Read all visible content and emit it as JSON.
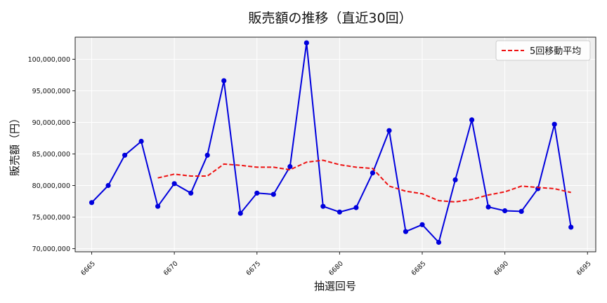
{
  "chart_data": {
    "type": "line",
    "title": "販売額の推移（直近30回）",
    "xlabel": "抽選回号",
    "ylabel": "販売額（円）",
    "xlim": [
      6664,
      6695.5
    ],
    "ylim": [
      69500000,
      103500000
    ],
    "xticks": [
      6665,
      6670,
      6675,
      6680,
      6685,
      6690,
      6695
    ],
    "yticks": [
      70000000,
      75000000,
      80000000,
      85000000,
      90000000,
      95000000,
      100000000
    ],
    "grid": true,
    "legend_position": "top-right",
    "colors": {
      "sales": "#0000dd",
      "moving_average": "#ee1111",
      "plot_bg": "#efefef",
      "grid": "#ffffff"
    },
    "series": [
      {
        "key": "sales",
        "style": "solid-markers",
        "x": [
          6665,
          6666,
          6667,
          6668,
          6669,
          6670,
          6671,
          6672,
          6673,
          6674,
          6675,
          6676,
          6677,
          6678,
          6679,
          6680,
          6681,
          6682,
          6683,
          6684,
          6685,
          6686,
          6687,
          6688,
          6689,
          6690,
          6691,
          6692,
          6693,
          6694
        ],
        "values": [
          77300000,
          80000000,
          84800000,
          87000000,
          76700000,
          80300000,
          78800000,
          84800000,
          96600000,
          75600000,
          78800000,
          78600000,
          83000000,
          102600000,
          76700000,
          75800000,
          76500000,
          82000000,
          88700000,
          72700000,
          73800000,
          71000000,
          80900000,
          90400000,
          76600000,
          76000000,
          75900000,
          79500000,
          89700000,
          73400000
        ]
      },
      {
        "key": "moving_average",
        "name": "5回移動平均",
        "style": "dashed",
        "x": [
          6669,
          6670,
          6671,
          6672,
          6673,
          6674,
          6675,
          6676,
          6677,
          6678,
          6679,
          6680,
          6681,
          6682,
          6683,
          6684,
          6685,
          6686,
          6687,
          6688,
          6689,
          6690,
          6691,
          6692,
          6693,
          6694
        ],
        "values": [
          81200000,
          81800000,
          81500000,
          81500000,
          83400000,
          83200000,
          82900000,
          82900000,
          82500000,
          83700000,
          84000000,
          83300000,
          82900000,
          82700000,
          79900000,
          79100000,
          78700000,
          77600000,
          77400000,
          77800000,
          78500000,
          79000000,
          79900000,
          79700000,
          79500000,
          78900000
        ]
      }
    ]
  }
}
